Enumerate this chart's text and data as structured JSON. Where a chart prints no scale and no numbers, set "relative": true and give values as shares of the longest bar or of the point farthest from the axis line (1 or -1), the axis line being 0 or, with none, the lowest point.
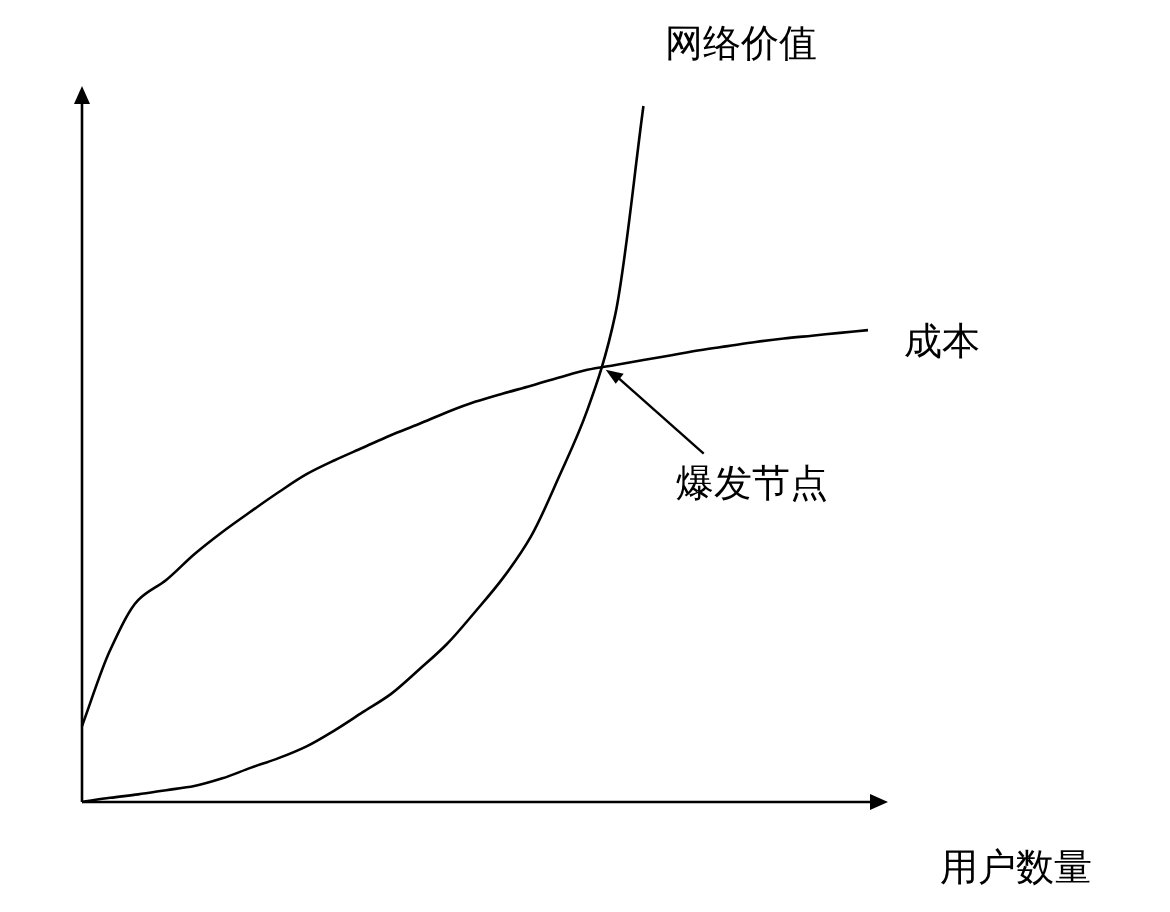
{
  "chart_data": {
    "type": "line",
    "relative": true,
    "xlabel": "用户数量",
    "categories": [
      null,
      null,
      null,
      null,
      null,
      null,
      null,
      null,
      null,
      null,
      null,
      null,
      null,
      null,
      null,
      null,
      null,
      null,
      null,
      null,
      null,
      null,
      null,
      null,
      null,
      null,
      null,
      null,
      null
    ],
    "series": [
      {
        "name": "网络价值",
        "color": "#000000",
        "values": [
          0,
          0.006,
          0.011,
          0.017,
          0.023,
          0.034,
          0.049,
          0.063,
          0.08,
          0.103,
          0.129,
          0.155,
          0.19,
          0.227,
          0.273,
          0.322,
          0.382,
          0.468,
          0.563,
          0.701,
          1,
          null,
          null,
          null,
          null,
          null,
          null,
          null,
          null
        ]
      },
      {
        "name": "成本",
        "color": "#000000",
        "values": [
          0.109,
          0.218,
          0.29,
          0.319,
          0.356,
          0.388,
          0.417,
          0.445,
          0.471,
          0.491,
          0.509,
          0.527,
          0.543,
          0.56,
          0.575,
          0.587,
          0.598,
          0.61,
          0.621,
          0.628,
          0.635,
          0.642,
          0.649,
          0.655,
          0.661,
          0.666,
          0.67,
          0.674,
          0.678
        ]
      }
    ],
    "annotations": [
      "爆发节点"
    ]
  }
}
